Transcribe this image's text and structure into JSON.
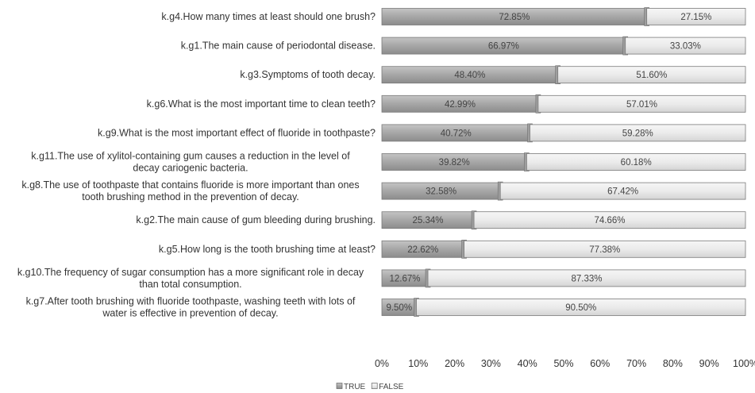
{
  "chart_data": {
    "type": "bar",
    "orientation": "horizontal",
    "stacked": true,
    "normalized": true,
    "categories": [
      [
        "k.g4.How many times at least should one brush?"
      ],
      [
        "k.g1.The main cause of periodontal disease."
      ],
      [
        "k.g3.Symptoms of tooth decay."
      ],
      [
        "k.g6.What is the most important time to clean teeth?"
      ],
      [
        "k.g9.What is the most important effect of fluoride in toothpaste?"
      ],
      [
        "k.g11.The use of xylitol-containing gum causes a  reduction in the level of",
        "decay cariogenic bacteria."
      ],
      [
        "k.g8.The use of toothpaste that contains fluoride is more important than ones",
        "tooth brushing method in the prevention of decay."
      ],
      [
        "k.g2.The main cause of gum bleeding during brushing."
      ],
      [
        "k.g5.How long is the tooth brushing time at least?"
      ],
      [
        "k.g10.The frequency of sugar consumption has a more significant role in decay",
        "than total consumption."
      ],
      [
        "k.g7.After tooth brushing with fluoride toothpaste,  washing teeth with lots of",
        "water is effective in prevention of decay."
      ]
    ],
    "series": [
      {
        "name": "TRUE",
        "color": "#a6a6a6",
        "values": [
          72.85,
          66.97,
          48.4,
          42.99,
          40.72,
          39.82,
          32.58,
          25.34,
          22.62,
          12.67,
          9.5
        ],
        "labels": [
          "72.85%",
          "66.97%",
          "48.40%",
          "42.99%",
          "40.72%",
          "39.82%",
          "32.58%",
          "25.34%",
          "22.62%",
          "12.67%",
          "9.50%"
        ]
      },
      {
        "name": "FALSE",
        "color": "#ececec",
        "values": [
          27.15,
          33.03,
          51.6,
          57.01,
          59.28,
          60.18,
          67.42,
          74.66,
          77.38,
          87.33,
          90.5
        ],
        "labels": [
          "27.15%",
          "33.03%",
          "51.60%",
          "57.01%",
          "59.28%",
          "60.18%",
          "67.42%",
          "74.66%",
          "77.38%",
          "87.33%",
          "90.50%"
        ]
      }
    ],
    "x_ticks": [
      "0%",
      "10%",
      "20%",
      "30%",
      "40%",
      "50%",
      "60%",
      "70%",
      "80%",
      "90%",
      "100%"
    ],
    "xlim": [
      0,
      100
    ],
    "legend_position": "bottom",
    "grid": false
  }
}
